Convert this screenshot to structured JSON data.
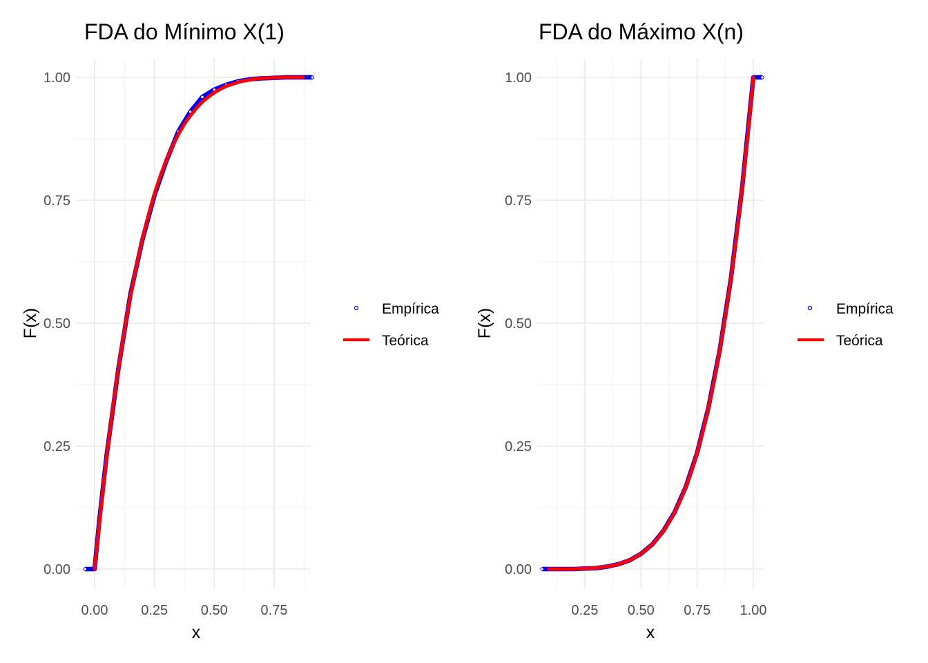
{
  "chart_data": [
    {
      "type": "line",
      "title": "FDA do Mínimo X(1)",
      "xlabel": "x",
      "ylabel": "F(x)",
      "xlim": [
        -0.03,
        0.91
      ],
      "ylim": [
        -0.05,
        1.05
      ],
      "x_ticks": [
        "0.00",
        "0.25",
        "0.50",
        "0.75"
      ],
      "y_ticks": [
        "0.00",
        "0.25",
        "0.50",
        "0.75",
        "1.00"
      ],
      "grid": true,
      "legend_position": "right",
      "series": [
        {
          "name": "Empírica",
          "kind": "points",
          "color": "#0000ff",
          "x": [
            -0.04,
            0.0,
            0.02,
            0.05,
            0.1,
            0.15,
            0.2,
            0.25,
            0.3,
            0.35,
            0.4,
            0.45,
            0.5,
            0.55,
            0.6,
            0.65,
            0.7,
            0.75,
            0.8,
            0.87,
            0.91
          ],
          "y": [
            0.0,
            0.0,
            0.1,
            0.23,
            0.41,
            0.56,
            0.67,
            0.76,
            0.83,
            0.89,
            0.93,
            0.96,
            0.975,
            0.985,
            0.992,
            0.996,
            0.998,
            0.999,
            1.0,
            1.0,
            1.0
          ]
        },
        {
          "name": "Teórica",
          "kind": "line",
          "color": "#ff0000",
          "x": [
            0.0,
            0.025,
            0.05,
            0.075,
            0.1,
            0.125,
            0.15,
            0.175,
            0.2,
            0.225,
            0.25,
            0.275,
            0.3,
            0.325,
            0.35,
            0.375,
            0.4,
            0.425,
            0.45,
            0.475,
            0.5,
            0.525,
            0.55,
            0.575,
            0.6,
            0.625,
            0.65,
            0.675,
            0.7,
            0.725,
            0.75,
            0.775,
            0.8,
            0.825,
            0.85,
            0.87
          ],
          "y": [
            0.0,
            0.118,
            0.226,
            0.324,
            0.41,
            0.487,
            0.556,
            0.617,
            0.672,
            0.72,
            0.763,
            0.8,
            0.832,
            0.86,
            0.884,
            0.905,
            0.922,
            0.937,
            0.95,
            0.96,
            0.969,
            0.976,
            0.982,
            0.986,
            0.99,
            0.993,
            0.995,
            0.997,
            0.998,
            0.999,
            0.999,
            1.0,
            1.0,
            1.0,
            1.0,
            1.0
          ]
        }
      ]
    },
    {
      "type": "line",
      "title": "FDA do Máximo X(n)",
      "xlabel": "x",
      "ylabel": "F(x)",
      "xlim": [
        0.07,
        1.05
      ],
      "ylim": [
        -0.05,
        1.05
      ],
      "x_ticks": [
        "0.25",
        "0.50",
        "0.75",
        "1.00"
      ],
      "y_ticks": [
        "0.00",
        "0.25",
        "0.50",
        "0.75",
        "1.00"
      ],
      "grid": true,
      "legend_position": "right",
      "series": [
        {
          "name": "Empírica",
          "kind": "points",
          "color": "#0000ff",
          "x": [
            0.06,
            0.09,
            0.15,
            0.2,
            0.25,
            0.3,
            0.35,
            0.4,
            0.45,
            0.5,
            0.55,
            0.6,
            0.65,
            0.7,
            0.75,
            0.8,
            0.85,
            0.9,
            0.95,
            1.0,
            1.04
          ],
          "y": [
            0.0,
            0.0,
            0.0,
            0.0,
            0.001,
            0.002,
            0.005,
            0.01,
            0.018,
            0.031,
            0.05,
            0.078,
            0.116,
            0.168,
            0.237,
            0.328,
            0.444,
            0.59,
            0.774,
            1.0,
            1.0
          ]
        },
        {
          "name": "Teórica",
          "kind": "line",
          "color": "#ff0000",
          "x": [
            0.09,
            0.125,
            0.15,
            0.175,
            0.2,
            0.225,
            0.25,
            0.275,
            0.3,
            0.325,
            0.35,
            0.375,
            0.4,
            0.425,
            0.45,
            0.475,
            0.5,
            0.525,
            0.55,
            0.575,
            0.6,
            0.625,
            0.65,
            0.675,
            0.7,
            0.725,
            0.75,
            0.775,
            0.8,
            0.825,
            0.85,
            0.875,
            0.9,
            0.925,
            0.95,
            0.975,
            1.0
          ],
          "y": [
            0.0,
            0.0,
            0.0,
            0.0,
            0.0,
            0.001,
            0.001,
            0.002,
            0.002,
            0.004,
            0.005,
            0.007,
            0.01,
            0.014,
            0.018,
            0.024,
            0.031,
            0.04,
            0.05,
            0.063,
            0.078,
            0.095,
            0.116,
            0.14,
            0.168,
            0.2,
            0.237,
            0.279,
            0.328,
            0.382,
            0.444,
            0.513,
            0.59,
            0.677,
            0.774,
            0.881,
            1.0
          ]
        }
      ]
    }
  ]
}
